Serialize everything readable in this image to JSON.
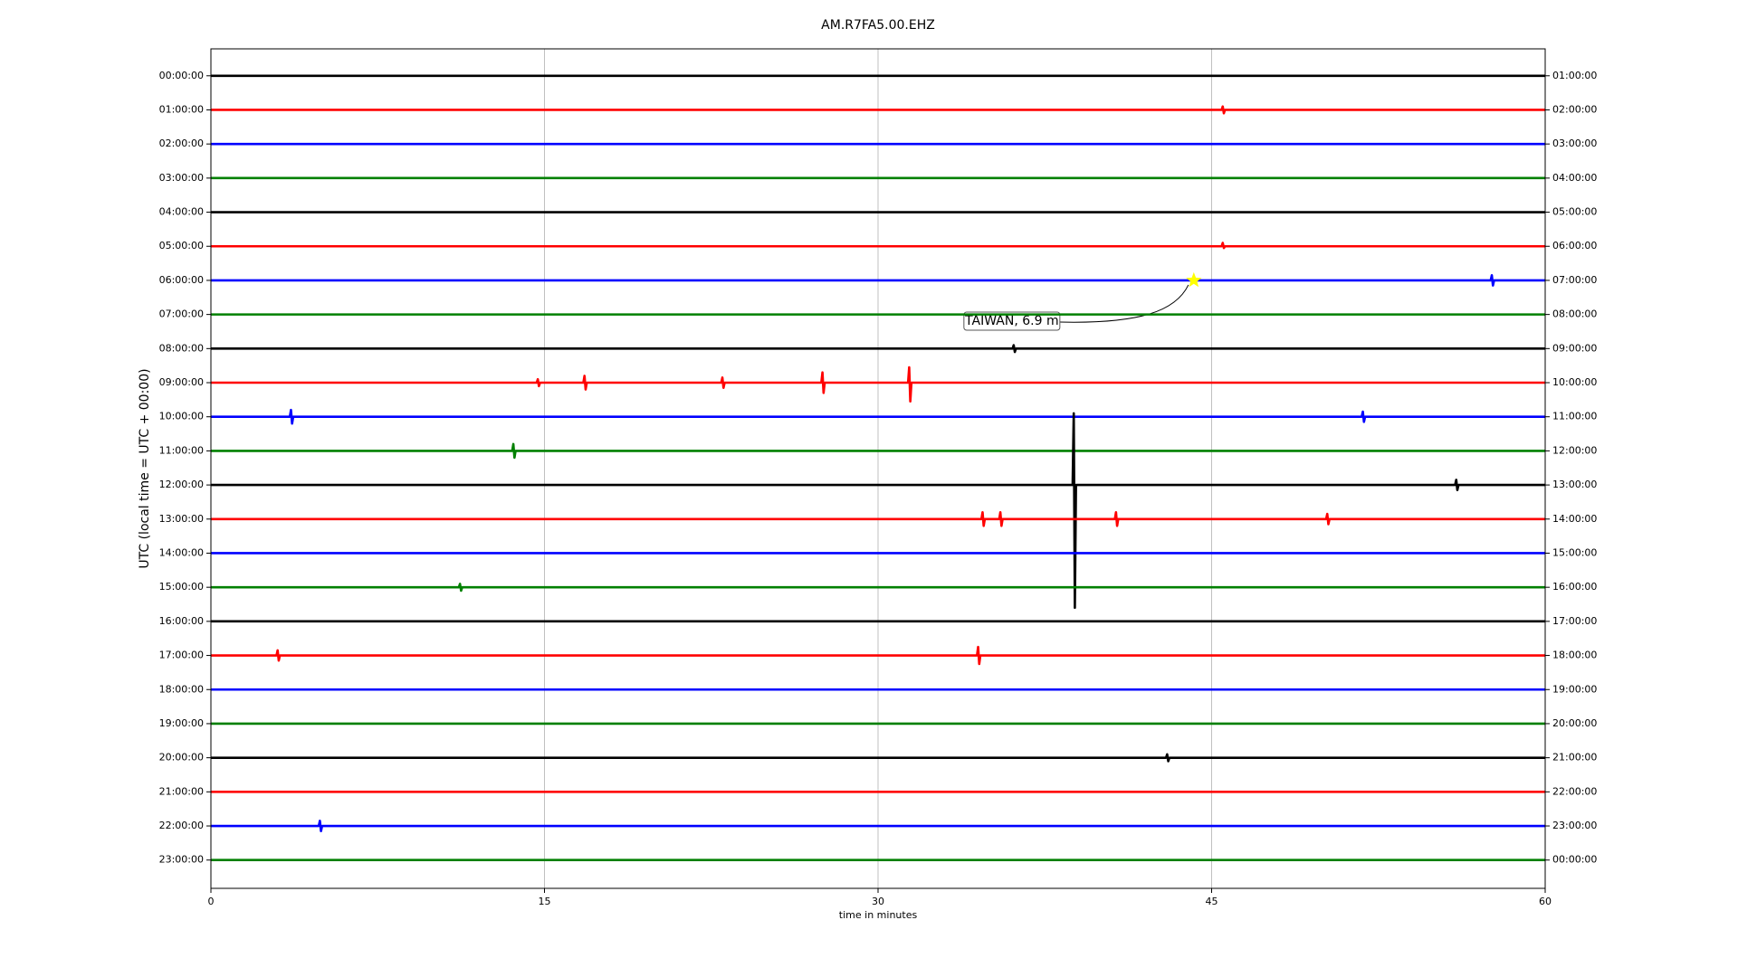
{
  "chart_data": {
    "type": "dayplot",
    "title": "AM.R7FA5.00.EHZ",
    "x_label": "time in minutes",
    "y_label": "UTC (local time = UTC + 00:00)",
    "xlim": [
      0,
      60
    ],
    "xticks": [
      0,
      15,
      30,
      45,
      60
    ],
    "grid": true,
    "categories": [
      "00:00:00",
      "01:00:00",
      "02:00:00",
      "03:00:00",
      "04:00:00",
      "05:00:00",
      "06:00:00",
      "07:00:00",
      "08:00:00",
      "09:00:00",
      "10:00:00",
      "11:00:00",
      "12:00:00",
      "13:00:00",
      "14:00:00",
      "15:00:00",
      "16:00:00",
      "17:00:00",
      "18:00:00",
      "19:00:00",
      "20:00:00",
      "21:00:00",
      "22:00:00",
      "23:00:00"
    ],
    "right_categories": [
      "01:00:00",
      "02:00:00",
      "03:00:00",
      "04:00:00",
      "05:00:00",
      "06:00:00",
      "07:00:00",
      "08:00:00",
      "09:00:00",
      "10:00:00",
      "11:00:00",
      "12:00:00",
      "13:00:00",
      "14:00:00",
      "15:00:00",
      "16:00:00",
      "17:00:00",
      "18:00:00",
      "19:00:00",
      "20:00:00",
      "21:00:00",
      "22:00:00",
      "23:00:00",
      "00:00:00"
    ],
    "series": [
      {
        "color": "#000000",
        "x": [
          0,
          60
        ],
        "values": [
          0,
          0
        ]
      },
      {
        "color": "#ff0000",
        "x": [
          0,
          45.45,
          45.5,
          45.55,
          45.6,
          60
        ],
        "values": [
          0,
          0,
          0.1,
          -0.1,
          0,
          0
        ]
      },
      {
        "color": "#0000ff",
        "x": [
          0,
          60
        ],
        "values": [
          0,
          0
        ]
      },
      {
        "color": "#008000",
        "x": [
          0,
          60
        ],
        "values": [
          0,
          0
        ]
      },
      {
        "color": "#000000",
        "x": [
          0,
          60
        ],
        "values": [
          0,
          0
        ]
      },
      {
        "color": "#ff0000",
        "x": [
          0,
          45.45,
          45.5,
          45.55,
          45.6,
          60
        ],
        "values": [
          0,
          0,
          0.1,
          -0.05,
          0,
          0
        ]
      },
      {
        "color": "#0000ff",
        "x": [
          0,
          57.55,
          57.6,
          57.65,
          57.7,
          60
        ],
        "values": [
          0,
          0,
          0.15,
          -0.15,
          0,
          0
        ],
        "event": {
          "label": "TAIWAN, 6.9 m",
          "x": 44.2,
          "color": "#ffff00"
        }
      },
      {
        "color": "#008000",
        "x": [
          0,
          60
        ],
        "values": [
          0,
          0
        ]
      },
      {
        "color": "#000000",
        "x": [
          0,
          36.05,
          36.1,
          36.15,
          36.2,
          60
        ],
        "values": [
          0,
          0,
          0.1,
          -0.1,
          0,
          0
        ]
      },
      {
        "color": "#ff0000",
        "x": [
          0,
          14.65,
          14.7,
          14.75,
          14.8,
          16.75,
          16.8,
          16.85,
          16.9,
          22.95,
          23,
          23.05,
          23.1,
          27.45,
          27.5,
          27.55,
          27.6,
          31.35,
          31.4,
          31.45,
          31.5,
          60
        ],
        "values": [
          0,
          0,
          0.1,
          -0.1,
          0,
          0,
          0.2,
          -0.2,
          0,
          0,
          0.15,
          -0.15,
          0,
          0,
          0.3,
          -0.3,
          0,
          0,
          0.45,
          -0.55,
          0,
          0
        ]
      },
      {
        "color": "#0000ff",
        "x": [
          0,
          3.55,
          3.6,
          3.65,
          3.7,
          51.75,
          51.8,
          51.85,
          51.9,
          60
        ],
        "values": [
          0,
          0,
          0.2,
          -0.2,
          0,
          0,
          0.15,
          -0.15,
          0,
          0
        ]
      },
      {
        "color": "#008000",
        "x": [
          0,
          13.55,
          13.6,
          13.65,
          13.7,
          60
        ],
        "values": [
          0,
          0,
          0.2,
          -0.2,
          0,
          0
        ]
      },
      {
        "color": "#000000",
        "x": [
          0,
          38.75,
          38.8,
          38.85,
          38.9,
          55.95,
          56,
          56.05,
          56.1,
          60
        ],
        "values": [
          0,
          0,
          2.1,
          -3.6,
          0,
          0,
          0.15,
          -0.15,
          0,
          0
        ]
      },
      {
        "color": "#ff0000",
        "x": [
          0,
          34.65,
          34.7,
          34.75,
          34.8,
          35.45,
          35.5,
          35.55,
          35.6,
          40.65,
          40.7,
          40.75,
          40.8,
          50.15,
          50.2,
          50.25,
          50.3,
          60
        ],
        "values": [
          0,
          0,
          0.2,
          -0.2,
          0,
          0,
          0.2,
          -0.2,
          0,
          0,
          0.2,
          -0.2,
          0,
          0,
          0.15,
          -0.15,
          0,
          0
        ]
      },
      {
        "color": "#0000ff",
        "x": [
          0,
          60
        ],
        "values": [
          0,
          0
        ]
      },
      {
        "color": "#008000",
        "x": [
          0,
          11.15,
          11.2,
          11.25,
          11.3,
          60
        ],
        "values": [
          0,
          0,
          0.1,
          -0.1,
          0,
          0
        ]
      },
      {
        "color": "#000000",
        "x": [
          0,
          60
        ],
        "values": [
          0,
          0
        ]
      },
      {
        "color": "#ff0000",
        "x": [
          0,
          2.95,
          3,
          3.05,
          3.1,
          34.45,
          34.5,
          34.55,
          34.6,
          60
        ],
        "values": [
          0,
          0,
          0.15,
          -0.15,
          0,
          0,
          0.25,
          -0.25,
          0,
          0
        ]
      },
      {
        "color": "#0000ff",
        "x": [
          0,
          60
        ],
        "values": [
          0,
          0
        ]
      },
      {
        "color": "#008000",
        "x": [
          0,
          60
        ],
        "values": [
          0,
          0
        ]
      },
      {
        "color": "#000000",
        "x": [
          0,
          42.95,
          43,
          43.05,
          43.1,
          60
        ],
        "values": [
          0,
          0,
          0.1,
          -0.1,
          0,
          0
        ]
      },
      {
        "color": "#ff0000",
        "x": [
          0,
          60
        ],
        "values": [
          0,
          0
        ]
      },
      {
        "color": "#0000ff",
        "x": [
          0,
          4.85,
          4.9,
          4.95,
          5,
          60
        ],
        "values": [
          0,
          0,
          0.15,
          -0.15,
          0,
          0
        ]
      },
      {
        "color": "#008000",
        "x": [
          0,
          60
        ],
        "values": [
          0,
          0
        ]
      }
    ]
  }
}
